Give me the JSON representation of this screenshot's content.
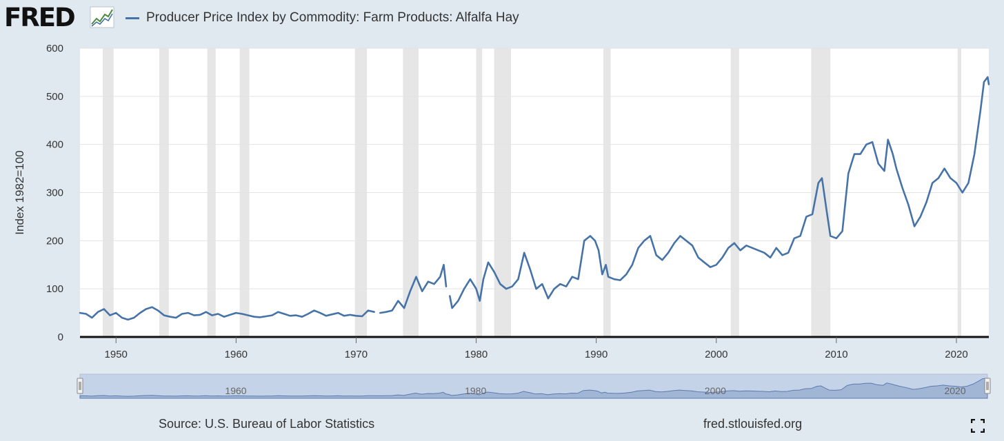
{
  "header": {
    "logo_text": "FRED",
    "series_title": "Producer Price Index by Commodity: Farm Products: Alfalfa Hay"
  },
  "footer": {
    "source": "Source: U.S. Bureau of Labor Statistics",
    "url": "fred.stlouisfed.org"
  },
  "colors": {
    "series": "#4572a7",
    "recession": "#e6e6e6",
    "background": "#e1e9f0",
    "navigator_fill": "#9bb0d0"
  },
  "icons": {
    "logo": "fred-chart-icon",
    "fullscreen": "fullscreen-icon"
  },
  "chart_data": {
    "type": "line",
    "title": "Producer Price Index by Commodity: Farm Products: Alfalfa Hay",
    "ylabel": "Index 1982=100",
    "xlabel": "",
    "xlim": [
      1947,
      2022.7
    ],
    "ylim": [
      0,
      600
    ],
    "x_ticks": [
      "1950",
      "1960",
      "1970",
      "1980",
      "1990",
      "2000",
      "2010",
      "2020"
    ],
    "y_ticks": [
      "0",
      "100",
      "200",
      "300",
      "400",
      "500",
      "600"
    ],
    "grid": "horizontal",
    "recessions": [
      [
        1948.9,
        1949.8
      ],
      [
        1953.6,
        1954.4
      ],
      [
        1957.6,
        1958.3
      ],
      [
        1960.3,
        1961.1
      ],
      [
        1969.9,
        1970.9
      ],
      [
        1973.9,
        1975.2
      ],
      [
        1980.0,
        1980.5
      ],
      [
        1981.5,
        1982.9
      ],
      [
        1990.6,
        1991.2
      ],
      [
        2001.2,
        2001.9
      ],
      [
        2007.9,
        2009.5
      ],
      [
        2020.1,
        2020.4
      ]
    ],
    "navigator_labels": [
      "1960",
      "1980",
      "2000",
      "2020"
    ],
    "series": [
      {
        "name": "Producer Price Index by Commodity: Farm Products: Alfalfa Hay",
        "segments": [
          [
            [
              1947,
              50
            ],
            [
              1947.5,
              48
            ],
            [
              1948,
              40
            ],
            [
              1948.5,
              52
            ],
            [
              1949,
              58
            ],
            [
              1949.5,
              45
            ],
            [
              1950,
              50
            ],
            [
              1950.5,
              40
            ],
            [
              1951,
              36
            ],
            [
              1951.5,
              40
            ],
            [
              1952,
              50
            ],
            [
              1952.5,
              58
            ],
            [
              1953,
              62
            ],
            [
              1953.5,
              55
            ],
            [
              1954,
              45
            ],
            [
              1954.5,
              42
            ],
            [
              1955,
              40
            ],
            [
              1955.5,
              48
            ],
            [
              1956,
              50
            ],
            [
              1956.5,
              45
            ],
            [
              1957,
              46
            ],
            [
              1957.5,
              52
            ],
            [
              1958,
              45
            ],
            [
              1958.5,
              48
            ],
            [
              1959,
              42
            ],
            [
              1959.5,
              46
            ],
            [
              1960,
              50
            ],
            [
              1960.5,
              48
            ],
            [
              1961,
              45
            ],
            [
              1961.5,
              42
            ],
            [
              1962,
              41
            ],
            [
              1962.5,
              43
            ],
            [
              1963,
              45
            ],
            [
              1963.5,
              52
            ],
            [
              1964,
              48
            ],
            [
              1964.5,
              44
            ],
            [
              1965,
              45
            ],
            [
              1965.5,
              42
            ],
            [
              1966,
              48
            ],
            [
              1966.5,
              55
            ],
            [
              1967,
              50
            ],
            [
              1967.5,
              44
            ],
            [
              1968,
              47
            ],
            [
              1968.5,
              50
            ],
            [
              1969,
              44
            ],
            [
              1969.5,
              46
            ],
            [
              1970,
              44
            ],
            [
              1970.5,
              43
            ],
            [
              1971,
              55
            ],
            [
              1971.5,
              52
            ]
          ],
          [
            [
              1972,
              50
            ],
            [
              1972.5,
              52
            ],
            [
              1973,
              55
            ],
            [
              1973.5,
              75
            ],
            [
              1974,
              60
            ],
            [
              1974.5,
              95
            ],
            [
              1975,
              125
            ],
            [
              1975.5,
              95
            ],
            [
              1976,
              115
            ],
            [
              1976.5,
              110
            ],
            [
              1977,
              125
            ],
            [
              1977.3,
              150
            ],
            [
              1977.5,
              105
            ]
          ],
          [
            [
              1977.8,
              85
            ],
            [
              1978,
              60
            ],
            [
              1978.5,
              75
            ],
            [
              1979,
              100
            ],
            [
              1979.5,
              120
            ],
            [
              1980,
              100
            ],
            [
              1980.3,
              75
            ],
            [
              1980.6,
              120
            ],
            [
              1981,
              155
            ],
            [
              1981.5,
              135
            ],
            [
              1982,
              110
            ],
            [
              1982.5,
              100
            ],
            [
              1983,
              105
            ],
            [
              1983.5,
              120
            ],
            [
              1984,
              175
            ],
            [
              1984.5,
              140
            ],
            [
              1985,
              100
            ],
            [
              1985.5,
              110
            ],
            [
              1986,
              80
            ],
            [
              1986.5,
              100
            ],
            [
              1987,
              110
            ],
            [
              1987.5,
              105
            ],
            [
              1988,
              125
            ],
            [
              1988.5,
              120
            ],
            [
              1989,
              200
            ],
            [
              1989.5,
              210
            ],
            [
              1989.9,
              200
            ],
            [
              1990.2,
              180
            ],
            [
              1990.5,
              130
            ],
            [
              1990.8,
              150
            ],
            [
              1991,
              125
            ],
            [
              1991.5,
              120
            ],
            [
              1992,
              118
            ],
            [
              1992.5,
              130
            ],
            [
              1993,
              150
            ],
            [
              1993.5,
              185
            ],
            [
              1994,
              200
            ],
            [
              1994.5,
              210
            ],
            [
              1995,
              170
            ],
            [
              1995.5,
              160
            ],
            [
              1996,
              175
            ],
            [
              1996.5,
              195
            ],
            [
              1997,
              210
            ],
            [
              1997.5,
              200
            ],
            [
              1998,
              190
            ],
            [
              1998.5,
              165
            ],
            [
              1999,
              155
            ],
            [
              1999.5,
              145
            ],
            [
              2000,
              150
            ],
            [
              2000.5,
              165
            ],
            [
              2001,
              185
            ],
            [
              2001.5,
              195
            ],
            [
              2002,
              180
            ],
            [
              2002.5,
              190
            ],
            [
              2003,
              185
            ],
            [
              2003.5,
              180
            ],
            [
              2004,
              175
            ],
            [
              2004.5,
              165
            ],
            [
              2005,
              185
            ],
            [
              2005.5,
              170
            ],
            [
              2006,
              175
            ],
            [
              2006.5,
              205
            ],
            [
              2007,
              210
            ],
            [
              2007.5,
              250
            ],
            [
              2008,
              255
            ],
            [
              2008.5,
              320
            ],
            [
              2008.8,
              330
            ],
            [
              2009.2,
              260
            ],
            [
              2009.5,
              210
            ],
            [
              2010,
              205
            ],
            [
              2010.5,
              220
            ],
            [
              2011,
              340
            ],
            [
              2011.5,
              380
            ],
            [
              2012,
              380
            ],
            [
              2012.5,
              400
            ],
            [
              2013,
              405
            ],
            [
              2013.5,
              360
            ],
            [
              2014,
              345
            ],
            [
              2014.3,
              410
            ],
            [
              2014.7,
              380
            ],
            [
              2015,
              350
            ],
            [
              2015.5,
              310
            ],
            [
              2016,
              275
            ],
            [
              2016.5,
              230
            ],
            [
              2017,
              250
            ],
            [
              2017.5,
              280
            ],
            [
              2018,
              320
            ],
            [
              2018.5,
              330
            ],
            [
              2019,
              350
            ],
            [
              2019.5,
              330
            ],
            [
              2020,
              320
            ],
            [
              2020.5,
              300
            ],
            [
              2021,
              320
            ],
            [
              2021.5,
              380
            ],
            [
              2022,
              470
            ],
            [
              2022.3,
              530
            ],
            [
              2022.6,
              540
            ],
            [
              2022.7,
              525
            ]
          ]
        ]
      }
    ]
  }
}
